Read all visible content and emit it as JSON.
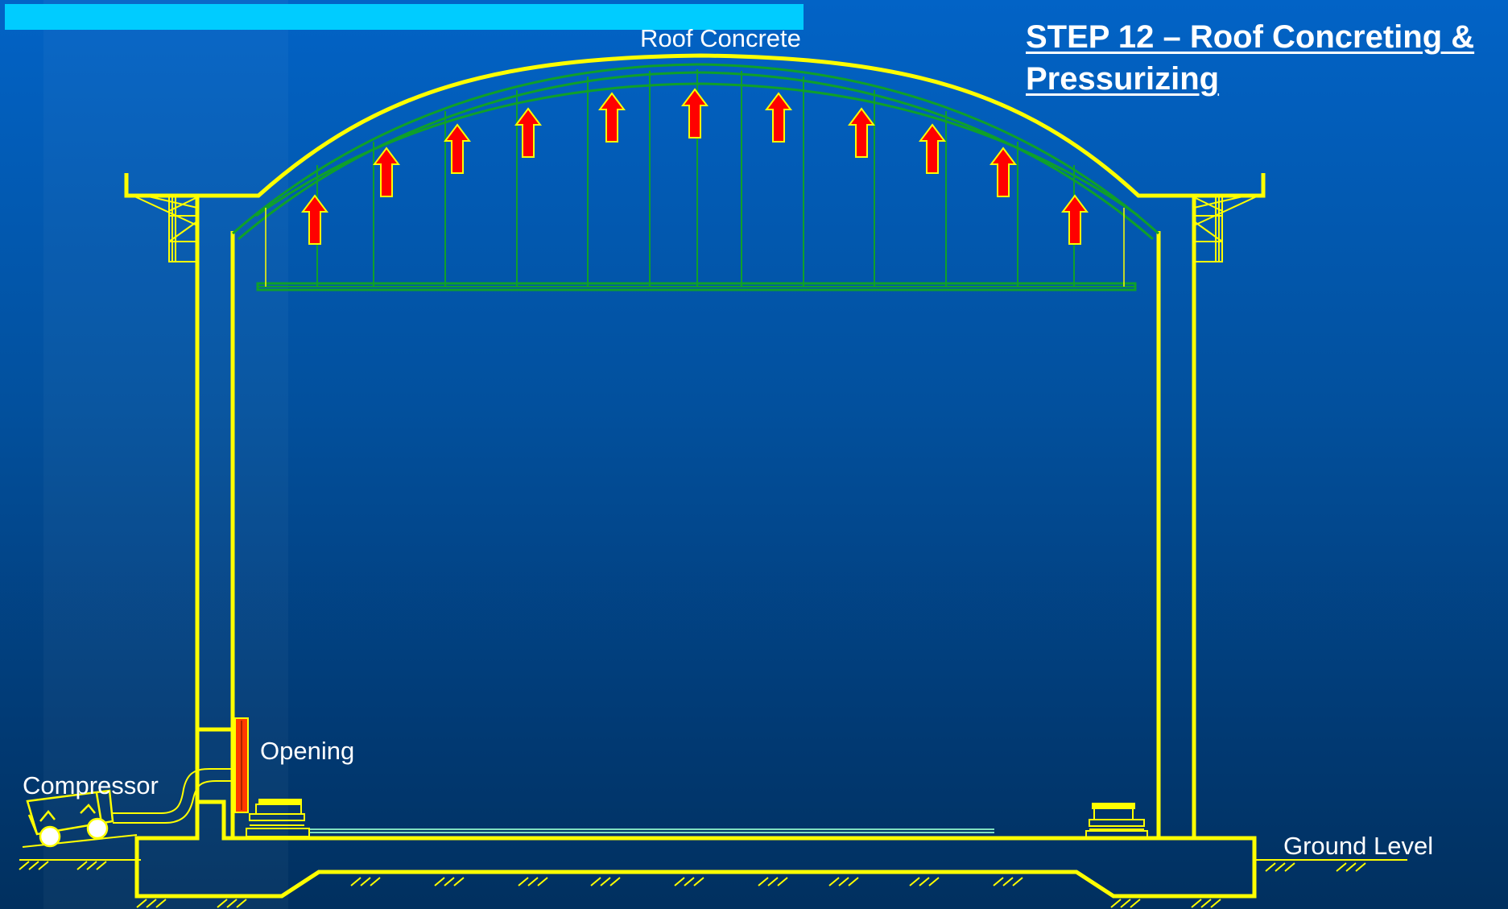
{
  "slide": {
    "title_line1": "STEP 12 – Roof Concreting &",
    "title_line2": "Pressurizing",
    "progress_fraction": 0.533
  },
  "labels": {
    "roof": "Roof Concrete",
    "opening": "Opening",
    "compressor": "Compressor",
    "ground": "Ground Level"
  },
  "colors": {
    "structure": "#ffff00",
    "formwork": "#0fa02a",
    "arrow_fill": "#ff0000",
    "arrow_stroke": "#ffff00",
    "progress_bar": "#00ccff",
    "text": "#ffffff"
  }
}
